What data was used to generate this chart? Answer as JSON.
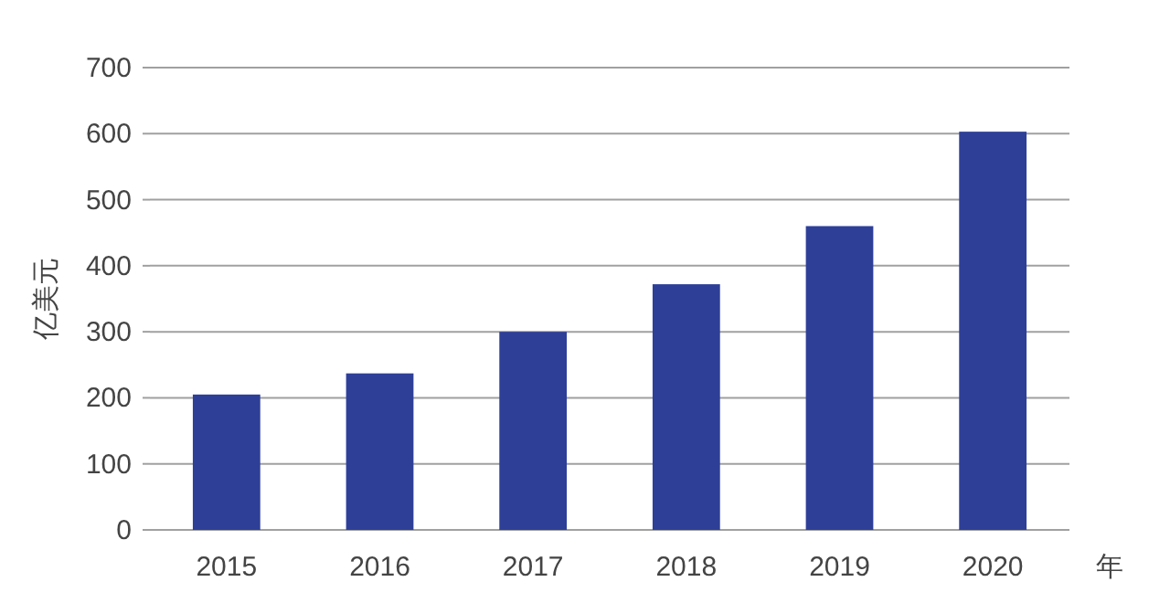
{
  "chart_data": {
    "type": "bar",
    "xlabel": "年",
    "ylabel": "亿美元",
    "categories": [
      "2015",
      "2016",
      "2017",
      "2018",
      "2019",
      "2020"
    ],
    "series": [
      {
        "color": "#2e3f98",
        "values": [
          205,
          237,
          300,
          372,
          460,
          603
        ]
      }
    ],
    "ylim": [
      0,
      700
    ],
    "yticks": [
      0,
      100,
      200,
      300,
      400,
      500,
      600,
      700
    ],
    "grid": "y"
  }
}
